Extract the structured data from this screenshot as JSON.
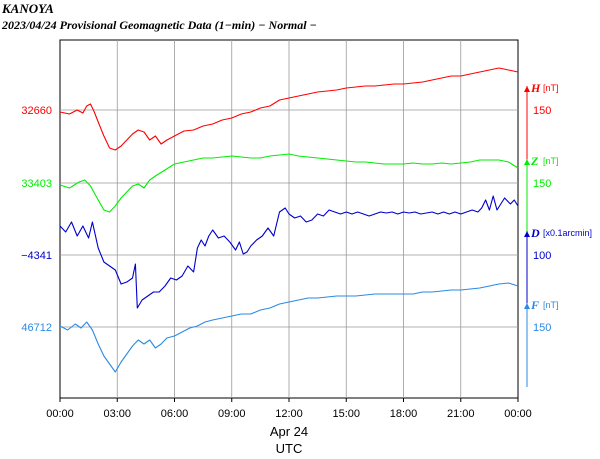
{
  "header": {
    "station": "KANOYA",
    "subtitle": "2023/04/24  Provisional Geomagnetic Data (1−min)  − Normal −"
  },
  "chart_data": {
    "type": "line",
    "x_axis": {
      "ticks": [
        "00:00",
        "03:00",
        "06:00",
        "09:00",
        "12:00",
        "15:00",
        "18:00",
        "21:00",
        "00:00"
      ],
      "range_hours": [
        0,
        24
      ],
      "date_label": "Apr 24",
      "label": "UTC"
    },
    "grid": true,
    "series": [
      {
        "name": "H",
        "unit": "[nT]",
        "color": "#ff0000",
        "base_label": "32660",
        "scale_label": "150",
        "points": [
          [
            0,
            112
          ],
          [
            0.5,
            114
          ],
          [
            0.9,
            110
          ],
          [
            1.2,
            113
          ],
          [
            1.4,
            106
          ],
          [
            1.6,
            104
          ],
          [
            1.8,
            112
          ],
          [
            2.0,
            122
          ],
          [
            2.3,
            136
          ],
          [
            2.6,
            148
          ],
          [
            2.9,
            150
          ],
          [
            3.2,
            146
          ],
          [
            3.5,
            140
          ],
          [
            3.8,
            134
          ],
          [
            4.1,
            130
          ],
          [
            4.4,
            132
          ],
          [
            4.7,
            140
          ],
          [
            5.0,
            136
          ],
          [
            5.3,
            144
          ],
          [
            5.6,
            140
          ],
          [
            6.0,
            136
          ],
          [
            6.5,
            131
          ],
          [
            7.0,
            130
          ],
          [
            7.5,
            126
          ],
          [
            8.0,
            124
          ],
          [
            8.5,
            120
          ],
          [
            9.0,
            118
          ],
          [
            9.5,
            114
          ],
          [
            10.0,
            112
          ],
          [
            10.5,
            108
          ],
          [
            11.0,
            106
          ],
          [
            11.5,
            100
          ],
          [
            12.0,
            98
          ],
          [
            12.5,
            96
          ],
          [
            13.0,
            94
          ],
          [
            13.5,
            92
          ],
          [
            14.0,
            91
          ],
          [
            14.5,
            90
          ],
          [
            15.0,
            88
          ],
          [
            15.5,
            87
          ],
          [
            16.0,
            86
          ],
          [
            16.5,
            86
          ],
          [
            17.0,
            85
          ],
          [
            17.5,
            84
          ],
          [
            18.0,
            84
          ],
          [
            18.5,
            83
          ],
          [
            19.0,
            82
          ],
          [
            19.5,
            80
          ],
          [
            20.0,
            78
          ],
          [
            20.5,
            76
          ],
          [
            21.0,
            76
          ],
          [
            21.5,
            74
          ],
          [
            22.0,
            72
          ],
          [
            22.5,
            70
          ],
          [
            23.0,
            68
          ],
          [
            23.5,
            70
          ],
          [
            24,
            72
          ]
        ]
      },
      {
        "name": "Z",
        "unit": "[nT]",
        "color": "#00ee00",
        "base_label": "33403",
        "scale_label": "150",
        "points": [
          [
            0,
            185
          ],
          [
            0.5,
            188
          ],
          [
            1.0,
            182
          ],
          [
            1.3,
            180
          ],
          [
            1.6,
            186
          ],
          [
            2.0,
            200
          ],
          [
            2.3,
            210
          ],
          [
            2.6,
            212
          ],
          [
            2.9,
            206
          ],
          [
            3.2,
            198
          ],
          [
            3.5,
            192
          ],
          [
            3.8,
            186
          ],
          [
            4.1,
            184
          ],
          [
            4.4,
            188
          ],
          [
            4.7,
            180
          ],
          [
            5.0,
            176
          ],
          [
            5.5,
            170
          ],
          [
            6.0,
            164
          ],
          [
            6.5,
            162
          ],
          [
            7.0,
            160
          ],
          [
            7.5,
            158
          ],
          [
            8.0,
            158
          ],
          [
            8.5,
            157
          ],
          [
            9.0,
            156
          ],
          [
            9.5,
            157
          ],
          [
            10.0,
            158
          ],
          [
            10.5,
            158
          ],
          [
            11.0,
            156
          ],
          [
            11.5,
            155
          ],
          [
            12.0,
            154
          ],
          [
            12.5,
            156
          ],
          [
            13.0,
            157
          ],
          [
            13.5,
            158
          ],
          [
            14.0,
            159
          ],
          [
            14.5,
            160
          ],
          [
            15.0,
            161
          ],
          [
            15.5,
            162
          ],
          [
            16.0,
            162
          ],
          [
            16.5,
            163
          ],
          [
            17.0,
            164
          ],
          [
            17.5,
            164
          ],
          [
            18.0,
            164
          ],
          [
            18.5,
            163
          ],
          [
            19.0,
            164
          ],
          [
            19.5,
            164
          ],
          [
            20.0,
            163
          ],
          [
            20.5,
            164
          ],
          [
            21.0,
            163
          ],
          [
            21.5,
            162
          ],
          [
            22.0,
            160
          ],
          [
            22.5,
            160
          ],
          [
            23.0,
            160
          ],
          [
            23.5,
            162
          ],
          [
            24,
            168
          ]
        ]
      },
      {
        "name": "D",
        "unit": "[x0.1arcmin]",
        "color": "#0000cc",
        "base_label": "−4341",
        "scale_label": "100",
        "points": [
          [
            0,
            226
          ],
          [
            0.3,
            232
          ],
          [
            0.6,
            222
          ],
          [
            0.9,
            236
          ],
          [
            1.2,
            226
          ],
          [
            1.5,
            238
          ],
          [
            1.7,
            222
          ],
          [
            2.0,
            248
          ],
          [
            2.3,
            262
          ],
          [
            2.6,
            266
          ],
          [
            2.9,
            270
          ],
          [
            3.2,
            284
          ],
          [
            3.5,
            282
          ],
          [
            3.8,
            278
          ],
          [
            3.95,
            264
          ],
          [
            4.05,
            308
          ],
          [
            4.3,
            300
          ],
          [
            4.6,
            296
          ],
          [
            4.9,
            292
          ],
          [
            5.2,
            292
          ],
          [
            5.5,
            286
          ],
          [
            5.8,
            278
          ],
          [
            6.1,
            280
          ],
          [
            6.4,
            276
          ],
          [
            6.7,
            266
          ],
          [
            7.0,
            272
          ],
          [
            7.2,
            248
          ],
          [
            7.4,
            240
          ],
          [
            7.6,
            246
          ],
          [
            7.8,
            236
          ],
          [
            8.0,
            230
          ],
          [
            8.3,
            238
          ],
          [
            8.6,
            236
          ],
          [
            8.9,
            242
          ],
          [
            9.2,
            250
          ],
          [
            9.4,
            242
          ],
          [
            9.6,
            254
          ],
          [
            9.8,
            252
          ],
          [
            10.0,
            246
          ],
          [
            10.3,
            240
          ],
          [
            10.6,
            236
          ],
          [
            10.9,
            228
          ],
          [
            11.2,
            236
          ],
          [
            11.5,
            212
          ],
          [
            11.8,
            208
          ],
          [
            12.0,
            214
          ],
          [
            12.3,
            218
          ],
          [
            12.6,
            216
          ],
          [
            12.9,
            222
          ],
          [
            13.2,
            220
          ],
          [
            13.5,
            214
          ],
          [
            13.8,
            216
          ],
          [
            14.1,
            210
          ],
          [
            14.4,
            212
          ],
          [
            14.7,
            214
          ],
          [
            15.0,
            212
          ],
          [
            15.3,
            214
          ],
          [
            15.6,
            212
          ],
          [
            15.9,
            214
          ],
          [
            16.2,
            216
          ],
          [
            16.5,
            214
          ],
          [
            16.8,
            212
          ],
          [
            17.1,
            213
          ],
          [
            17.4,
            212
          ],
          [
            17.7,
            214
          ],
          [
            18.0,
            212
          ],
          [
            18.3,
            213
          ],
          [
            18.6,
            212
          ],
          [
            18.9,
            214
          ],
          [
            19.2,
            213
          ],
          [
            19.5,
            212
          ],
          [
            19.8,
            214
          ],
          [
            20.1,
            212
          ],
          [
            20.4,
            214
          ],
          [
            20.7,
            212
          ],
          [
            21.0,
            214
          ],
          [
            21.3,
            212
          ],
          [
            21.6,
            210
          ],
          [
            21.9,
            212
          ],
          [
            22.1,
            208
          ],
          [
            22.3,
            200
          ],
          [
            22.5,
            210
          ],
          [
            22.7,
            196
          ],
          [
            22.9,
            210
          ],
          [
            23.1,
            204
          ],
          [
            23.3,
            198
          ],
          [
            23.6,
            204
          ],
          [
            23.8,
            200
          ],
          [
            24,
            206
          ]
        ]
      },
      {
        "name": "F",
        "unit": "[nT]",
        "color": "#2a8ae6",
        "base_label": "46712",
        "scale_label": "150",
        "points": [
          [
            0,
            326
          ],
          [
            0.4,
            330
          ],
          [
            0.8,
            324
          ],
          [
            1.1,
            328
          ],
          [
            1.4,
            322
          ],
          [
            1.7,
            330
          ],
          [
            2.0,
            344
          ],
          [
            2.3,
            356
          ],
          [
            2.6,
            364
          ],
          [
            2.9,
            372
          ],
          [
            3.2,
            362
          ],
          [
            3.5,
            354
          ],
          [
            3.8,
            346
          ],
          [
            4.1,
            340
          ],
          [
            4.4,
            344
          ],
          [
            4.7,
            340
          ],
          [
            5.0,
            348
          ],
          [
            5.3,
            344
          ],
          [
            5.6,
            338
          ],
          [
            6.0,
            336
          ],
          [
            6.4,
            332
          ],
          [
            6.8,
            328
          ],
          [
            7.2,
            326
          ],
          [
            7.6,
            322
          ],
          [
            8.0,
            320
          ],
          [
            8.5,
            318
          ],
          [
            9.0,
            316
          ],
          [
            9.5,
            314
          ],
          [
            10.0,
            314
          ],
          [
            10.5,
            310
          ],
          [
            11.0,
            308
          ],
          [
            11.5,
            304
          ],
          [
            12.0,
            302
          ],
          [
            12.5,
            300
          ],
          [
            13.0,
            298
          ],
          [
            13.5,
            298
          ],
          [
            14.0,
            297
          ],
          [
            14.5,
            296
          ],
          [
            15.0,
            296
          ],
          [
            15.5,
            296
          ],
          [
            16.0,
            295
          ],
          [
            16.5,
            294
          ],
          [
            17.0,
            294
          ],
          [
            17.5,
            294
          ],
          [
            18.0,
            294
          ],
          [
            18.5,
            294
          ],
          [
            19.0,
            292
          ],
          [
            19.5,
            292
          ],
          [
            20.0,
            291
          ],
          [
            20.5,
            290
          ],
          [
            21.0,
            290
          ],
          [
            21.5,
            289
          ],
          [
            22.0,
            288
          ],
          [
            22.5,
            286
          ],
          [
            23.0,
            284
          ],
          [
            23.5,
            283
          ],
          [
            24,
            286
          ]
        ]
      }
    ]
  }
}
